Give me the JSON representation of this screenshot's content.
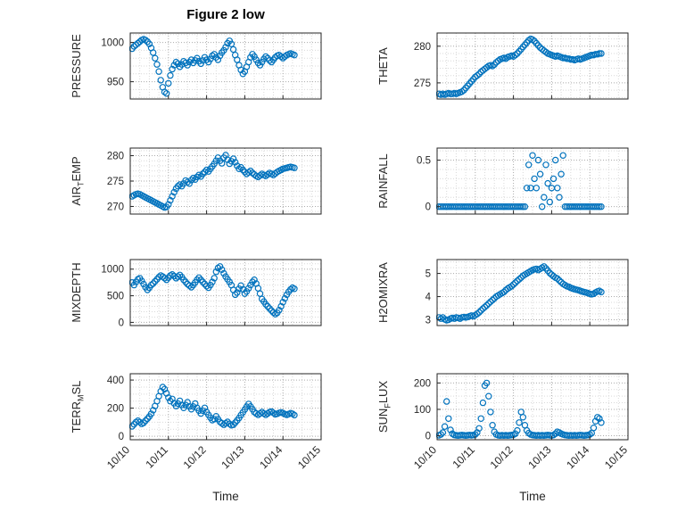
{
  "title": "Figure 2 low",
  "xlabel": "Time",
  "x_tick_labels": [
    "10/10",
    "10/11",
    "10/12",
    "10/13",
    "10/14",
    "10/15"
  ],
  "xticks": [
    0,
    1,
    2,
    3,
    4,
    5
  ],
  "xlim": [
    0,
    5
  ],
  "xminor": 0.25,
  "marker_color": "#0072BD",
  "chart_data": [
    {
      "type": "scatter",
      "name": "pressure",
      "ylabel": "PRESSURE",
      "ylabel_parts": [
        {
          "t": "PRESSURE"
        }
      ],
      "yticks": [
        950,
        1000
      ],
      "yticklabels": [
        "950",
        "1000"
      ],
      "ylim": [
        928,
        1012
      ],
      "yminor": 10,
      "x0": 0.05,
      "dx": 0.05,
      "y": [
        992,
        995,
        997,
        999,
        1001,
        1003,
        1004,
        1003,
        1001,
        998,
        993,
        987,
        980,
        972,
        963,
        952,
        943,
        937,
        935,
        948,
        958,
        966,
        971,
        975,
        973,
        969,
        972,
        976,
        974,
        971,
        975,
        978,
        974,
        977,
        980,
        976,
        973,
        977,
        981,
        978,
        975,
        979,
        983,
        985,
        981,
        978,
        983,
        987,
        990,
        994,
        999,
        1002,
        998,
        991,
        984,
        978,
        971,
        965,
        960,
        963,
        969,
        975,
        981,
        985,
        982,
        978,
        974,
        971,
        975,
        979,
        982,
        980,
        977,
        975,
        978,
        981,
        983,
        984,
        982,
        980,
        982,
        984,
        985,
        986,
        985,
        984
      ]
    },
    {
      "type": "scatter",
      "name": "theta",
      "ylabel": "THETA",
      "ylabel_parts": [
        {
          "t": "THETA"
        }
      ],
      "yticks": [
        275,
        280
      ],
      "yticklabels": [
        "275",
        "280"
      ],
      "ylim": [
        272.8,
        281.8
      ],
      "yminor": 1,
      "x0": 0.05,
      "dx": 0.05,
      "y": [
        273.5,
        273.4,
        273.5,
        273.4,
        273.5,
        273.6,
        273.5,
        273.5,
        273.6,
        273.5,
        273.6,
        273.7,
        273.8,
        274.0,
        274.3,
        274.6,
        274.9,
        275.2,
        275.5,
        275.8,
        276.0,
        276.2,
        276.5,
        276.7,
        276.9,
        277.1,
        277.3,
        277.4,
        277.3,
        277.5,
        277.8,
        278.0,
        278.2,
        278.3,
        278.4,
        278.3,
        278.5,
        278.6,
        278.7,
        278.6,
        278.8,
        279.0,
        279.3,
        279.6,
        279.9,
        280.2,
        280.5,
        280.8,
        281.0,
        280.9,
        280.7,
        280.4,
        280.1,
        279.8,
        279.6,
        279.4,
        279.2,
        279.0,
        278.9,
        278.8,
        278.7,
        278.6,
        278.7,
        278.6,
        278.5,
        278.4,
        278.4,
        278.3,
        278.3,
        278.2,
        278.2,
        278.1,
        278.2,
        278.3,
        278.2,
        278.3,
        278.4,
        278.5,
        278.6,
        278.7,
        278.8,
        278.8,
        278.9,
        278.9,
        279.0,
        279.0
      ]
    },
    {
      "type": "scatter",
      "name": "air-temp",
      "ylabel": "AIR_TEMP",
      "ylabel_parts": [
        {
          "t": "AIR"
        },
        {
          "t": "T",
          "sub": true
        },
        {
          "t": "EMP"
        }
      ],
      "yticks": [
        270,
        275,
        280
      ],
      "yticklabels": [
        "270",
        "275",
        "280"
      ],
      "ylim": [
        268.5,
        281.5
      ],
      "yminor": 1,
      "x0": 0.05,
      "dx": 0.05,
      "y": [
        272.0,
        272.2,
        272.4,
        272.5,
        272.4,
        272.2,
        272.0,
        271.8,
        271.6,
        271.4,
        271.2,
        271.0,
        270.8,
        270.6,
        270.4,
        270.2,
        270.0,
        269.8,
        269.9,
        270.4,
        271.2,
        272.0,
        272.8,
        273.5,
        274.0,
        274.3,
        274.0,
        274.5,
        275.1,
        274.8,
        274.5,
        275.2,
        275.6,
        275.3,
        275.8,
        276.2,
        275.9,
        276.4,
        276.8,
        277.2,
        276.9,
        277.4,
        277.9,
        278.4,
        279.0,
        279.6,
        279.0,
        278.5,
        279.6,
        280.1,
        279.2,
        278.4,
        278.9,
        279.4,
        278.7,
        278.0,
        277.4,
        277.7,
        277.2,
        276.8,
        276.4,
        276.7,
        277.0,
        276.6,
        276.3,
        276.0,
        275.8,
        276.1,
        276.4,
        276.2,
        276.0,
        276.3,
        276.6,
        276.4,
        276.2,
        276.5,
        276.8,
        277.0,
        277.2,
        277.4,
        277.5,
        277.6,
        277.7,
        277.8,
        277.7,
        277.6
      ]
    },
    {
      "type": "scatter",
      "name": "rainfall",
      "ylabel": "RAINFALL",
      "ylabel_parts": [
        {
          "t": "RAINFALL"
        }
      ],
      "yticks": [
        0,
        0.5
      ],
      "yticklabels": [
        "0",
        "0.5"
      ],
      "ylim": [
        -0.08,
        0.63
      ],
      "yminor": 0.1,
      "x0": 0.05,
      "dx": 0.05,
      "y": [
        0,
        0,
        0,
        0,
        0,
        0,
        0,
        0,
        0,
        0,
        0,
        0,
        0,
        0,
        0,
        0,
        0,
        0,
        0,
        0,
        0,
        0,
        0,
        0,
        0,
        0,
        0,
        0,
        0,
        0,
        0,
        0,
        0,
        0,
        0,
        0,
        0,
        0,
        0,
        0,
        0,
        0,
        0,
        0,
        0,
        0,
        0.2,
        0.45,
        0.2,
        0.55,
        0.3,
        0.2,
        0.5,
        0.35,
        0.0,
        0.1,
        0.45,
        0.25,
        0.05,
        0.2,
        0.3,
        0.5,
        0.2,
        0.1,
        0.35,
        0.55,
        0,
        0,
        0,
        0,
        0,
        0,
        0,
        0,
        0,
        0,
        0,
        0,
        0,
        0,
        0,
        0,
        0,
        0,
        0,
        0
      ]
    },
    {
      "type": "scatter",
      "name": "mixdepth",
      "ylabel": "MIXDEPTH",
      "ylabel_parts": [
        {
          "t": "MIXDEPTH"
        }
      ],
      "yticks": [
        0,
        500,
        1000
      ],
      "yticklabels": [
        "0",
        "500",
        "1000"
      ],
      "ylim": [
        -60,
        1180
      ],
      "yminor": 100,
      "x0": 0.05,
      "dx": 0.05,
      "y": [
        750,
        700,
        760,
        810,
        830,
        780,
        720,
        660,
        610,
        650,
        700,
        730,
        770,
        810,
        850,
        880,
        860,
        830,
        800,
        840,
        880,
        900,
        870,
        830,
        860,
        890,
        850,
        800,
        760,
        720,
        690,
        660,
        700,
        750,
        800,
        840,
        800,
        760,
        720,
        680,
        650,
        700,
        760,
        830,
        950,
        1020,
        1050,
        990,
        920,
        860,
        810,
        760,
        700,
        610,
        520,
        560,
        630,
        690,
        620,
        540,
        580,
        640,
        700,
        760,
        800,
        730,
        640,
        540,
        440,
        390,
        340,
        300,
        260,
        220,
        185,
        155,
        180,
        230,
        300,
        380,
        450,
        520,
        575,
        620,
        650,
        630
      ]
    },
    {
      "type": "scatter",
      "name": "h2omixra",
      "ylabel": "H2OMIXRA",
      "ylabel_parts": [
        {
          "t": "H2OMIXRA"
        }
      ],
      "yticks": [
        3,
        4,
        5
      ],
      "yticklabels": [
        "3",
        "4",
        "5"
      ],
      "ylim": [
        2.75,
        5.6
      ],
      "yminor": 0.25,
      "x0": 0.05,
      "dx": 0.05,
      "y": [
        3.1,
        3.05,
        3.1,
        3.02,
        2.98,
        3.0,
        3.05,
        3.08,
        3.05,
        3.1,
        3.08,
        3.05,
        3.1,
        3.12,
        3.1,
        3.12,
        3.15,
        3.18,
        3.15,
        3.2,
        3.25,
        3.32,
        3.4,
        3.48,
        3.55,
        3.62,
        3.7,
        3.78,
        3.85,
        3.92,
        4.0,
        4.05,
        4.1,
        4.15,
        4.2,
        4.28,
        4.35,
        4.4,
        4.45,
        4.52,
        4.6,
        4.68,
        4.75,
        4.82,
        4.9,
        4.95,
        5.0,
        5.05,
        5.1,
        5.15,
        5.18,
        5.2,
        5.15,
        5.2,
        5.25,
        5.3,
        5.22,
        5.12,
        5.02,
        4.95,
        4.88,
        4.82,
        4.78,
        4.7,
        4.62,
        4.55,
        4.5,
        4.45,
        4.42,
        4.38,
        4.35,
        4.32,
        4.3,
        4.28,
        4.25,
        4.22,
        4.2,
        4.18,
        4.15,
        4.12,
        4.1,
        4.12,
        4.18,
        4.22,
        4.25,
        4.2
      ]
    },
    {
      "type": "scatter",
      "name": "terr-msl",
      "ylabel": "TERR_MSL",
      "ylabel_parts": [
        {
          "t": "TERR"
        },
        {
          "t": "M",
          "sub": true
        },
        {
          "t": "SL"
        }
      ],
      "yticks": [
        0,
        200,
        400
      ],
      "yticklabels": [
        "0",
        "200",
        "400"
      ],
      "ylim": [
        -25,
        445
      ],
      "yminor": 50,
      "x0": 0.05,
      "dx": 0.05,
      "y": [
        70,
        85,
        100,
        110,
        100,
        88,
        95,
        110,
        125,
        140,
        160,
        185,
        215,
        250,
        285,
        320,
        350,
        335,
        305,
        275,
        250,
        265,
        235,
        215,
        232,
        252,
        222,
        202,
        222,
        242,
        212,
        192,
        212,
        232,
        202,
        182,
        162,
        182,
        202,
        172,
        152,
        132,
        115,
        122,
        142,
        122,
        102,
        92,
        82,
        92,
        102,
        88,
        78,
        82,
        96,
        112,
        130,
        150,
        170,
        190,
        210,
        230,
        212,
        192,
        172,
        162,
        152,
        162,
        172,
        162,
        152,
        162,
        172,
        176,
        166,
        156,
        160,
        166,
        170,
        165,
        158,
        152,
        158,
        164,
        160,
        150
      ]
    },
    {
      "type": "scatter",
      "name": "sun-flux",
      "ylabel": "SUN_FLUX",
      "ylabel_parts": [
        {
          "t": "SUN"
        },
        {
          "t": "F",
          "sub": true
        },
        {
          "t": "LUX"
        }
      ],
      "yticks": [
        0,
        100,
        200
      ],
      "yticklabels": [
        "0",
        "100",
        "200"
      ],
      "ylim": [
        -15,
        235
      ],
      "yminor": 25,
      "x0": 0.05,
      "dx": 0.05,
      "y": [
        2,
        5,
        12,
        35,
        130,
        65,
        22,
        8,
        3,
        2,
        1,
        2,
        3,
        2,
        1,
        2,
        3,
        2,
        3,
        5,
        12,
        28,
        65,
        125,
        190,
        200,
        150,
        90,
        40,
        15,
        5,
        2,
        1,
        2,
        1,
        2,
        1,
        2,
        3,
        4,
        8,
        20,
        50,
        90,
        70,
        40,
        20,
        10,
        5,
        3,
        2,
        1,
        2,
        1,
        2,
        1,
        2,
        3,
        2,
        1,
        3,
        8,
        15,
        12,
        8,
        5,
        3,
        2,
        1,
        2,
        1,
        2,
        1,
        2,
        3,
        2,
        1,
        2,
        3,
        5,
        10,
        30,
        55,
        70,
        65,
        50
      ]
    }
  ]
}
